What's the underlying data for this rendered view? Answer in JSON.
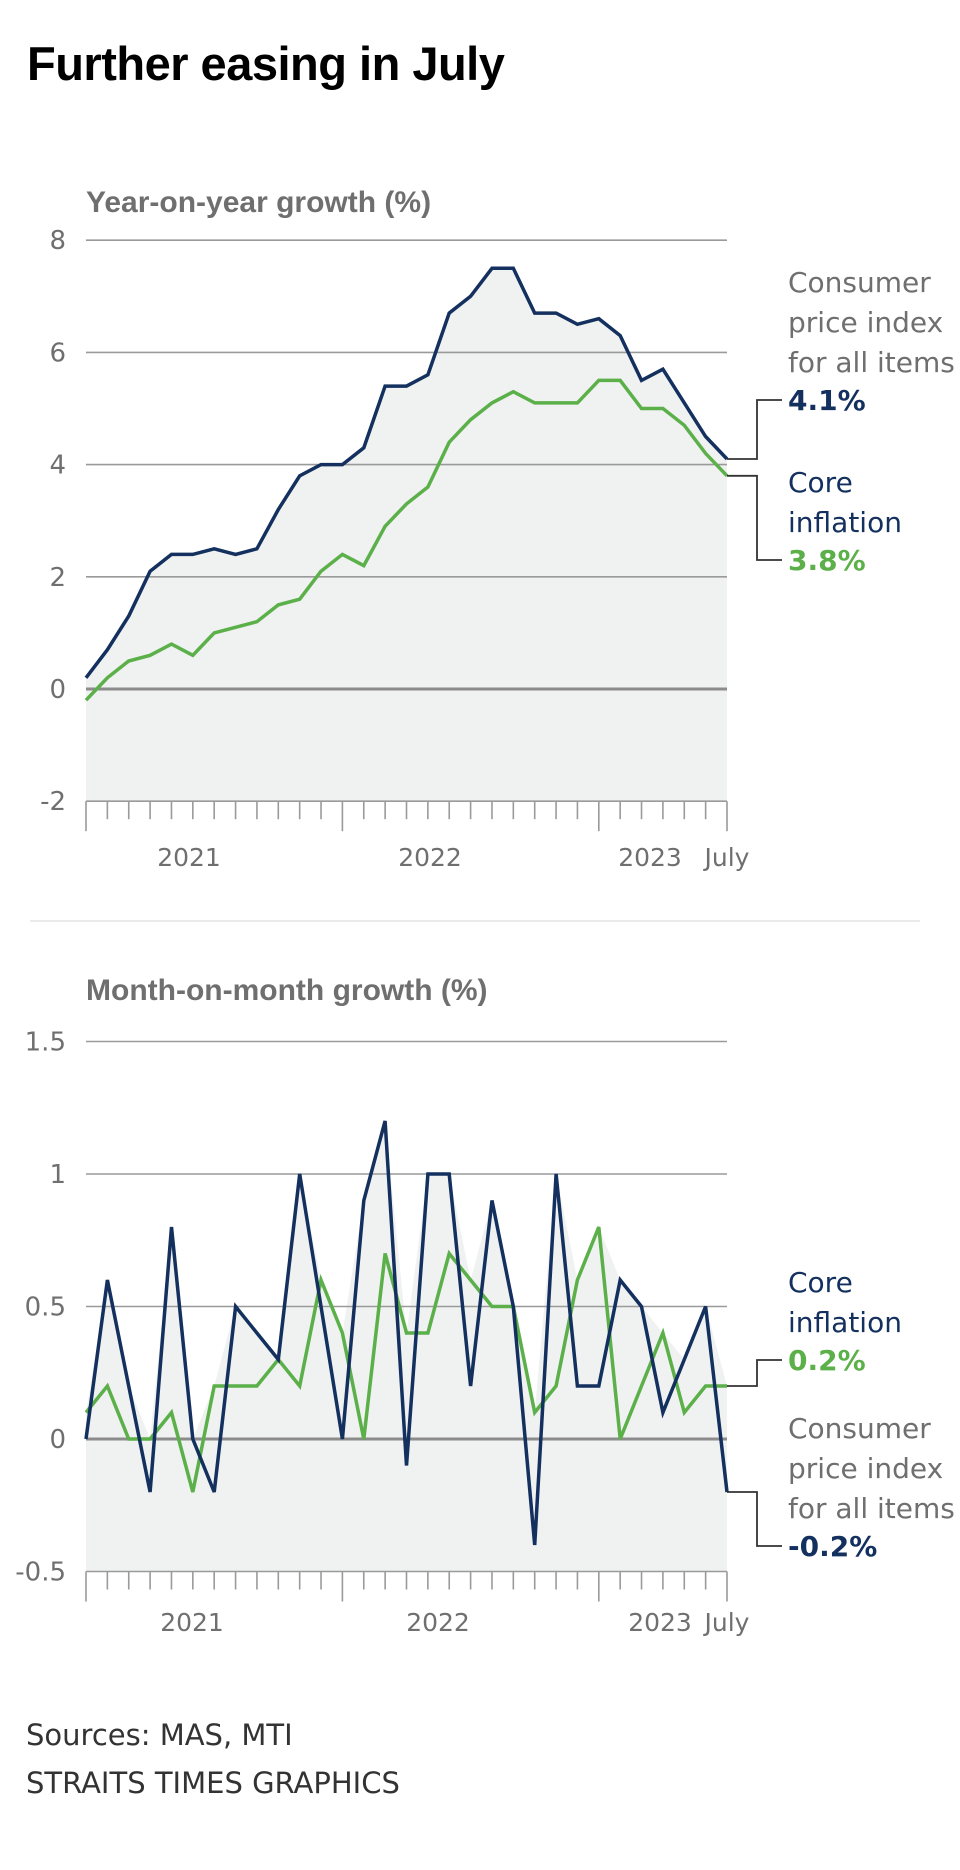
{
  "title": "Further easing in July",
  "colors": {
    "cpi": "#13305e",
    "core": "#5bb04a",
    "fill": "#f0f1f1",
    "grid": "#9a9a9a",
    "zero": "#8c8c8c",
    "axis_text": "#6f6f6f",
    "label_grey": "#6f6f6f",
    "connector": "#333333"
  },
  "chart_data": [
    {
      "type": "line",
      "title": "Year-on-year growth (%)",
      "xlabel": "",
      "ylabel": "",
      "x": [
        "Jan 2021",
        "Feb 2021",
        "Mar 2021",
        "Apr 2021",
        "May 2021",
        "Jun 2021",
        "Jul 2021",
        "Aug 2021",
        "Sep 2021",
        "Oct 2021",
        "Nov 2021",
        "Dec 2021",
        "Jan 2022",
        "Feb 2022",
        "Mar 2022",
        "Apr 2022",
        "May 2022",
        "Jun 2022",
        "Jul 2022",
        "Aug 2022",
        "Sep 2022",
        "Oct 2022",
        "Nov 2022",
        "Dec 2022",
        "Jan 2023",
        "Feb 2023",
        "Mar 2023",
        "Apr 2023",
        "May 2023",
        "Jun 2023",
        "Jul 2023"
      ],
      "x_tick_labels": [
        "2021",
        "2022",
        "2023",
        "July"
      ],
      "y_ticks": [
        "8",
        "6",
        "4",
        "2",
        "0",
        "-2"
      ],
      "y_tick_values": [
        8,
        6,
        4,
        2,
        0,
        -2
      ],
      "ylim": [
        -2,
        8
      ],
      "grid": true,
      "legend": "right, direct labels",
      "series": [
        {
          "name": "Consumer price index for all items",
          "key": "cpi",
          "label_lines": [
            "Consumer",
            "price index",
            "for all items"
          ],
          "end_label": "4.1%",
          "values": [
            0.2,
            0.7,
            1.3,
            2.1,
            2.4,
            2.4,
            2.5,
            2.4,
            2.5,
            3.2,
            3.8,
            4.0,
            4.0,
            4.3,
            5.4,
            5.4,
            5.6,
            6.7,
            7.0,
            7.5,
            7.5,
            6.7,
            6.7,
            6.5,
            6.6,
            6.3,
            5.5,
            5.7,
            5.1,
            4.5,
            4.1
          ]
        },
        {
          "name": "Core inflation",
          "key": "core",
          "label_lines": [
            "Core",
            "inflation"
          ],
          "end_label": "3.8%",
          "values": [
            -0.2,
            0.2,
            0.5,
            0.6,
            0.8,
            0.6,
            1.0,
            1.1,
            1.2,
            1.5,
            1.6,
            2.1,
            2.4,
            2.2,
            2.9,
            3.3,
            3.6,
            4.4,
            4.8,
            5.1,
            5.3,
            5.1,
            5.1,
            5.1,
            5.5,
            5.5,
            5.0,
            5.0,
            4.7,
            4.2,
            3.8
          ]
        }
      ]
    },
    {
      "type": "line",
      "title": "Month-on-month growth (%)",
      "xlabel": "",
      "ylabel": "",
      "x": [
        "Jan 2021",
        "Feb 2021",
        "Mar 2021",
        "Apr 2021",
        "May 2021",
        "Jun 2021",
        "Jul 2021",
        "Aug 2021",
        "Sep 2021",
        "Oct 2021",
        "Nov 2021",
        "Dec 2021",
        "Jan 2022",
        "Feb 2022",
        "Mar 2022",
        "Apr 2022",
        "May 2022",
        "Jun 2022",
        "Jul 2022",
        "Aug 2022",
        "Sep 2022",
        "Oct 2022",
        "Nov 2022",
        "Dec 2022",
        "Jan 2023",
        "Feb 2023",
        "Mar 2023",
        "Apr 2023",
        "May 2023",
        "Jun 2023",
        "Jul 2023"
      ],
      "x_tick_labels": [
        "2021",
        "2022",
        "2023",
        "July"
      ],
      "y_ticks": [
        "1.5",
        "1",
        "0.5",
        "0",
        "-0.5"
      ],
      "y_tick_values": [
        1.5,
        1,
        0.5,
        0,
        -0.5
      ],
      "ylim": [
        -0.5,
        1.5
      ],
      "grid": true,
      "legend": "right, direct labels",
      "series": [
        {
          "name": "Core inflation",
          "key": "core",
          "label_lines": [
            "Core",
            "inflation"
          ],
          "end_label": "0.2%",
          "values": [
            0.1,
            0.2,
            0.0,
            0.0,
            0.1,
            -0.2,
            0.2,
            0.2,
            0.2,
            0.3,
            0.2,
            0.6,
            0.4,
            0.0,
            0.7,
            0.4,
            0.4,
            0.7,
            0.6,
            0.5,
            0.5,
            0.1,
            0.2,
            0.6,
            0.8,
            0.0,
            0.2,
            0.4,
            0.1,
            0.2,
            0.2
          ]
        },
        {
          "name": "Consumer price index for all items",
          "key": "cpi",
          "label_lines": [
            "Consumer",
            "price index",
            "for all items"
          ],
          "end_label": "-0.2%",
          "values": [
            0.0,
            0.6,
            0.2,
            -0.2,
            0.8,
            0.0,
            -0.2,
            0.5,
            0.4,
            0.3,
            1.0,
            0.5,
            0.0,
            0.9,
            1.2,
            -0.1,
            1.0,
            1.0,
            0.2,
            0.9,
            0.5,
            -0.4,
            1.0,
            0.2,
            0.2,
            0.6,
            0.5,
            0.1,
            0.3,
            0.5,
            -0.2
          ]
        }
      ]
    }
  ],
  "footer": {
    "sources": "Sources: MAS, MTI",
    "credit": "STRAITS TIMES GRAPHICS"
  }
}
